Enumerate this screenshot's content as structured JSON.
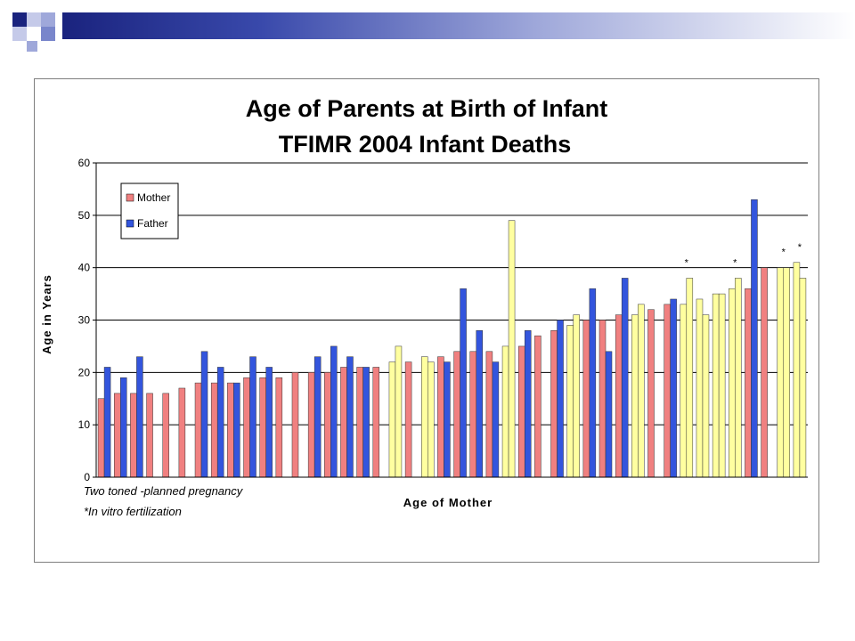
{
  "colors": {
    "mother": "#f08080",
    "father": "#3355dd",
    "planned": "#ffffa0",
    "bar_stroke": "#333333"
  },
  "chart_data": {
    "type": "bar",
    "title": [
      "Age of Parents at Birth of Infant",
      "TFIMR 2004 Infant Deaths"
    ],
    "xlabel": "Age of Mother",
    "ylabel": "Age in Years",
    "ylim": [
      0,
      60
    ],
    "yticks": [
      0,
      10,
      20,
      30,
      40,
      50,
      60
    ],
    "grid": true,
    "legend": {
      "placement": "top-left",
      "entries": [
        "Mother",
        "Father"
      ]
    },
    "notes": [
      "Two toned -planned pregnancy",
      "*In vitro fertilization"
    ],
    "pairs": [
      {
        "mother": 15,
        "father": 21
      },
      {
        "mother": 16,
        "father": 19
      },
      {
        "mother": 16,
        "father": 23
      },
      {
        "mother": 16
      },
      {
        "mother": 16
      },
      {
        "mother": 17
      },
      {
        "mother": 18,
        "father": 24
      },
      {
        "mother": 18,
        "father": 21
      },
      {
        "mother": 18,
        "father": 18
      },
      {
        "mother": 19,
        "father": 23
      },
      {
        "mother": 19,
        "father": 21
      },
      {
        "mother": 19
      },
      {
        "mother": 20
      },
      {
        "mother": 20,
        "father": 23
      },
      {
        "mother": 20,
        "father": 25
      },
      {
        "mother": 21,
        "father": 23
      },
      {
        "mother": 21,
        "father": 21
      },
      {
        "mother": 21
      },
      {
        "mother": 22,
        "father": 25,
        "planned": true
      },
      {
        "mother": 22
      },
      {
        "mother": 23,
        "father": 22,
        "planned": true
      },
      {
        "mother": 23,
        "father": 22
      },
      {
        "mother": 24,
        "father": 36
      },
      {
        "mother": 24,
        "father": 28
      },
      {
        "mother": 24,
        "father": 22
      },
      {
        "mother": 25,
        "father": 49,
        "planned": true
      },
      {
        "mother": 25,
        "father": 28
      },
      {
        "mother": 27
      },
      {
        "mother": 28,
        "father": 30
      },
      {
        "mother": 29,
        "father": 31,
        "planned": true
      },
      {
        "mother": 30,
        "father": 36
      },
      {
        "mother": 30,
        "father": 24
      },
      {
        "mother": 31,
        "father": 38
      },
      {
        "mother": 31,
        "father": 33,
        "planned": true
      },
      {
        "mother": 32
      },
      {
        "mother": 33,
        "father": 34
      },
      {
        "mother": 33,
        "father": 38,
        "planned": true,
        "ivf": true
      },
      {
        "mother": 34,
        "father": 31,
        "planned": true
      },
      {
        "mother": 35,
        "father": 35,
        "planned": true
      },
      {
        "mother": 36,
        "father": 38,
        "planned": true,
        "ivf": true
      },
      {
        "mother": 36,
        "father": 53
      },
      {
        "mother": 40
      },
      {
        "mother": 40,
        "father": 40,
        "planned": true,
        "ivf": true
      },
      {
        "mother": 41,
        "father": 38,
        "planned": true,
        "ivf": true
      }
    ]
  }
}
